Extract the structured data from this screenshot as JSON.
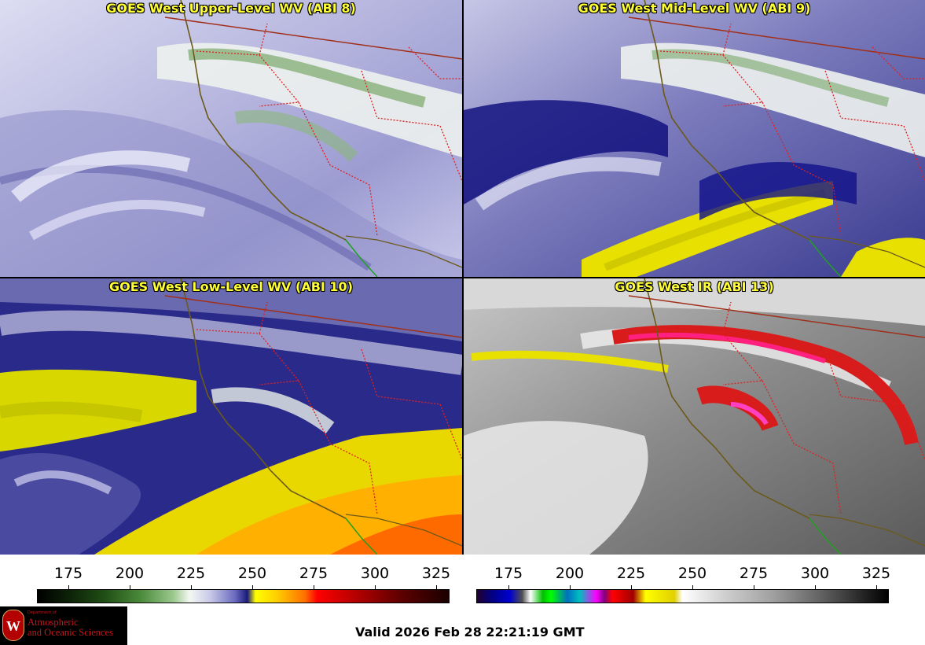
{
  "panels": [
    {
      "title": "GOES West Upper-Level WV (ABI 8)"
    },
    {
      "title": "GOES West Mid-Level WV (ABI 9)"
    },
    {
      "title": "GOES West Low-Level WV (ABI 10)"
    },
    {
      "title": "GOES West IR (ABI 13)"
    }
  ],
  "colorbars": [
    {
      "ticks": [
        "175",
        "200",
        "225",
        "250",
        "275",
        "300",
        "325"
      ]
    },
    {
      "ticks": [
        "175",
        "200",
        "225",
        "250",
        "275",
        "300",
        "325"
      ]
    }
  ],
  "logo": {
    "dept": "Department of",
    "line1": "Atmospheric",
    "line2": "and Oceanic Sciences",
    "seal_letter": "W"
  },
  "valid_time": "Valid 2026 Feb 28 22:21:19 GMT",
  "colors": {
    "title_text": "#ffff33",
    "coastline": "#6b5a1a",
    "state_border": "#e02020",
    "country_border": "#a0301a"
  }
}
